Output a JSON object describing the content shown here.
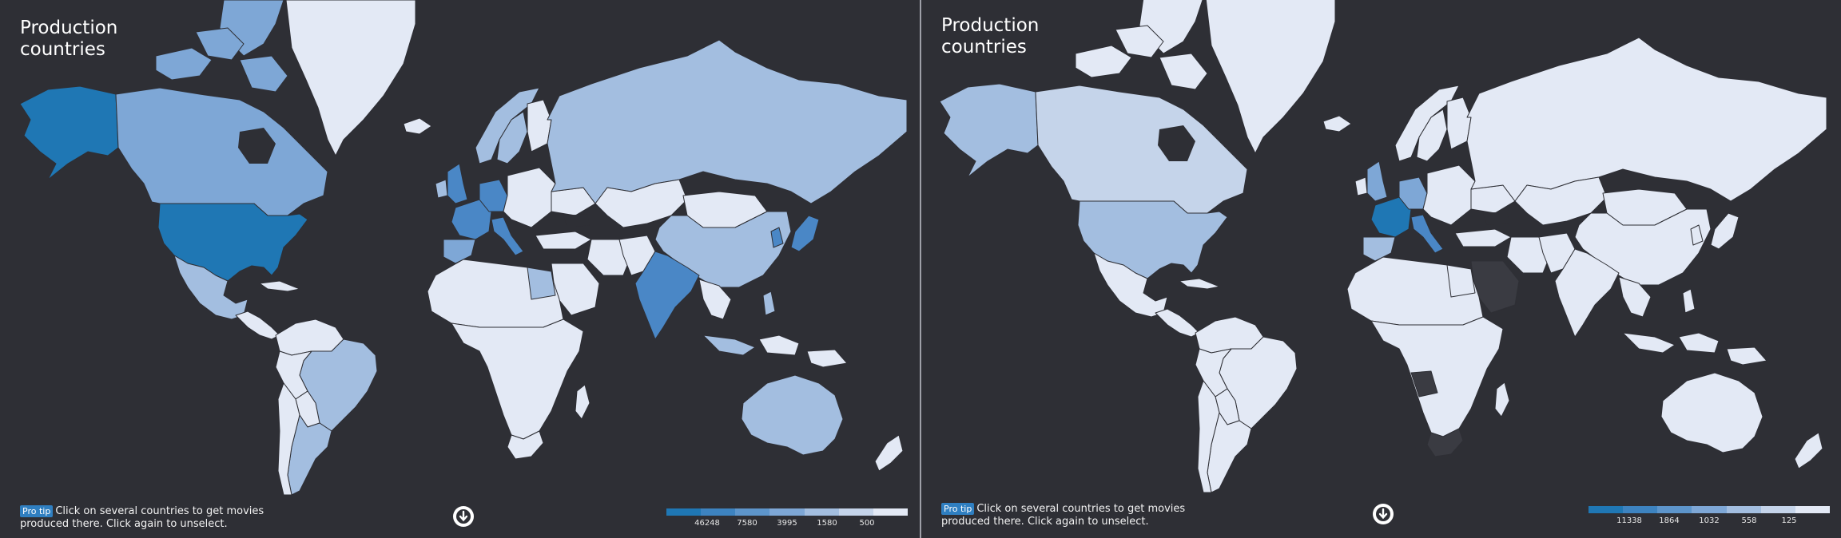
{
  "left_panel": {
    "title_line1": "Production",
    "title_line2": "countries",
    "pro_tip_badge": "Pro tip",
    "pro_tip_text": "Click on several countries to get movies produced there. Click again to unselect.",
    "legend_labels": [
      "46248",
      "7580",
      "3995",
      "1580",
      "500"
    ],
    "colors": {
      "strong": "#1f77b4",
      "high": "#4a87c6",
      "mid": "#7ea7d6",
      "low": "#a3bee0",
      "lowest": "#e3e9f5"
    }
  },
  "right_panel": {
    "title_line1": "Production",
    "title_line2": "countries",
    "pro_tip_badge": "Pro tip",
    "pro_tip_text": "Click on several countries to get movies produced there. Click again to unselect.",
    "legend_labels": [
      "11338",
      "1864",
      "1032",
      "558",
      "125"
    ],
    "colors": {
      "strong": "#1f77b4",
      "high": "#4a87c6",
      "mid": "#7ea7d6",
      "low": "#a3bee0",
      "lowest": "#e3e9f5"
    }
  },
  "scroll_down_icon": "arrow-down-circle-icon",
  "background_color": "#2e2f35",
  "divider_color": "#9ea0a8"
}
